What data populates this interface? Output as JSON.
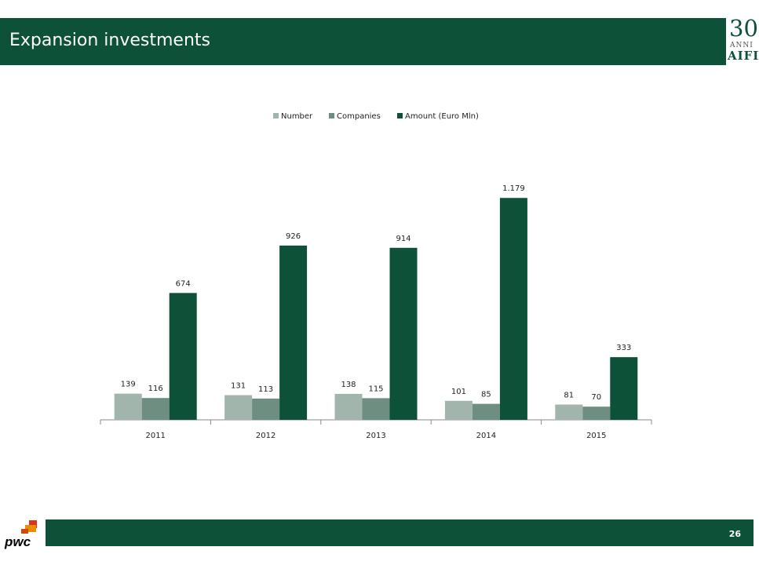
{
  "slide": {
    "title": "Expansion investments",
    "page_number": "26",
    "logo": {
      "line1": "30",
      "line2": "ANNI",
      "line3": "AIFI"
    },
    "pwc_label": "pwc"
  },
  "colors": {
    "header": "#0c5138",
    "number": "#a2b5ad",
    "companies": "#6d8e80",
    "amount": "#0c5138"
  },
  "chart_data": {
    "type": "bar",
    "categories": [
      "2011",
      "2012",
      "2013",
      "2014",
      "2015"
    ],
    "series": [
      {
        "name": "Number",
        "values": [
          139,
          131,
          138,
          101,
          81
        ],
        "labels": [
          "139",
          "131",
          "138",
          "101",
          "81"
        ]
      },
      {
        "name": "Companies",
        "values": [
          116,
          113,
          115,
          85,
          70
        ],
        "labels": [
          "116",
          "113",
          "115",
          "85",
          "70"
        ]
      },
      {
        "name": "Amount (Euro Mln)",
        "values": [
          674,
          926,
          914,
          1179,
          333
        ],
        "labels": [
          "674",
          "926",
          "914",
          "1.179",
          "333"
        ]
      }
    ],
    "ylim": [
      0,
      1180
    ],
    "legend_position": "top",
    "grid": false
  }
}
